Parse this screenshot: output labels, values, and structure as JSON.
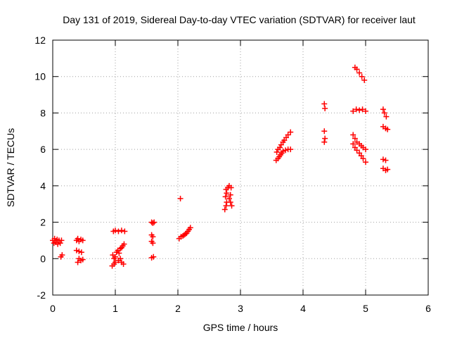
{
  "chart_data": {
    "type": "scatter",
    "title": "Day 131 of 2019, Sidereal Day-to-day VTEC variation (SDTVAR) for receiver laut",
    "xlabel": "GPS time / hours",
    "ylabel": "SDTVAR / TECUs",
    "xlim": [
      0,
      6
    ],
    "ylim": [
      -2,
      12
    ],
    "x_ticks": [
      "0",
      "1",
      "2",
      "3",
      "4",
      "5",
      "6"
    ],
    "y_ticks": [
      "-2",
      "0",
      "2",
      "4",
      "6",
      "8",
      "10",
      "12"
    ],
    "grid": true,
    "marker": "plus",
    "color": "#ff0000",
    "series": [
      {
        "name": "SDTVAR",
        "points": [
          [
            0.0,
            1.0
          ],
          [
            0.02,
            0.85
          ],
          [
            0.03,
            1.1
          ],
          [
            0.05,
            0.9
          ],
          [
            0.07,
            1.05
          ],
          [
            0.08,
            0.8
          ],
          [
            0.1,
            1.0
          ],
          [
            0.12,
            0.85
          ],
          [
            0.14,
            1.0
          ],
          [
            0.13,
            0.1
          ],
          [
            0.15,
            0.2
          ],
          [
            0.38,
            1.0
          ],
          [
            0.4,
            1.1
          ],
          [
            0.42,
            0.95
          ],
          [
            0.45,
            1.05
          ],
          [
            0.48,
            1.0
          ],
          [
            0.38,
            0.45
          ],
          [
            0.42,
            0.4
          ],
          [
            0.46,
            0.35
          ],
          [
            0.4,
            -0.2
          ],
          [
            0.42,
            0.0
          ],
          [
            0.45,
            -0.1
          ],
          [
            0.48,
            -0.05
          ],
          [
            0.97,
            1.5
          ],
          [
            1.0,
            1.55
          ],
          [
            1.05,
            1.5
          ],
          [
            1.1,
            1.55
          ],
          [
            1.15,
            1.5
          ],
          [
            0.96,
            0.2
          ],
          [
            0.98,
            0.0
          ],
          [
            1.0,
            0.1
          ],
          [
            1.02,
            0.35
          ],
          [
            1.04,
            0.45
          ],
          [
            1.06,
            0.3
          ],
          [
            1.08,
            0.55
          ],
          [
            1.1,
            0.6
          ],
          [
            1.12,
            0.7
          ],
          [
            1.14,
            0.8
          ],
          [
            0.95,
            -0.4
          ],
          [
            0.98,
            -0.3
          ],
          [
            1.0,
            -0.2
          ],
          [
            1.05,
            -0.1
          ],
          [
            1.08,
            0.0
          ],
          [
            1.1,
            -0.2
          ],
          [
            1.13,
            -0.3
          ],
          [
            1.58,
            2.0
          ],
          [
            1.6,
            1.95
          ],
          [
            1.62,
            2.0
          ],
          [
            1.58,
            1.3
          ],
          [
            1.6,
            1.2
          ],
          [
            1.58,
            0.95
          ],
          [
            1.6,
            0.85
          ],
          [
            1.58,
            0.05
          ],
          [
            1.61,
            0.1
          ],
          [
            2.04,
            3.3
          ],
          [
            2.02,
            1.1
          ],
          [
            2.05,
            1.2
          ],
          [
            2.08,
            1.25
          ],
          [
            2.1,
            1.3
          ],
          [
            2.12,
            1.35
          ],
          [
            2.14,
            1.4
          ],
          [
            2.16,
            1.5
          ],
          [
            2.18,
            1.6
          ],
          [
            2.2,
            1.7
          ],
          [
            2.75,
            2.7
          ],
          [
            2.77,
            2.9
          ],
          [
            2.78,
            3.1
          ],
          [
            2.76,
            3.4
          ],
          [
            2.78,
            3.6
          ],
          [
            2.77,
            3.8
          ],
          [
            2.8,
            3.9
          ],
          [
            2.82,
            4.0
          ],
          [
            2.85,
            3.9
          ],
          [
            2.82,
            3.3
          ],
          [
            2.84,
            3.1
          ],
          [
            2.86,
            2.9
          ],
          [
            2.84,
            3.5
          ],
          [
            3.57,
            5.4
          ],
          [
            3.6,
            5.5
          ],
          [
            3.62,
            5.6
          ],
          [
            3.64,
            5.7
          ],
          [
            3.66,
            5.8
          ],
          [
            3.68,
            5.9
          ],
          [
            3.72,
            5.95
          ],
          [
            3.76,
            6.0
          ],
          [
            3.8,
            6.0
          ],
          [
            3.58,
            5.85
          ],
          [
            3.6,
            6.0
          ],
          [
            3.63,
            6.1
          ],
          [
            3.65,
            6.25
          ],
          [
            3.68,
            6.4
          ],
          [
            3.7,
            6.5
          ],
          [
            3.73,
            6.65
          ],
          [
            3.76,
            6.8
          ],
          [
            3.8,
            6.95
          ],
          [
            4.34,
            8.5
          ],
          [
            4.35,
            8.25
          ],
          [
            4.34,
            7.0
          ],
          [
            4.35,
            6.6
          ],
          [
            4.34,
            6.4
          ],
          [
            4.83,
            10.5
          ],
          [
            4.86,
            10.4
          ],
          [
            4.9,
            10.2
          ],
          [
            4.94,
            10.0
          ],
          [
            4.98,
            9.8
          ],
          [
            4.8,
            8.1
          ],
          [
            4.85,
            8.2
          ],
          [
            4.9,
            8.15
          ],
          [
            4.95,
            8.2
          ],
          [
            5.0,
            8.1
          ],
          [
            4.8,
            6.8
          ],
          [
            4.83,
            6.6
          ],
          [
            4.86,
            6.4
          ],
          [
            4.9,
            6.3
          ],
          [
            4.93,
            6.2
          ],
          [
            4.96,
            6.1
          ],
          [
            5.0,
            6.0
          ],
          [
            4.8,
            6.3
          ],
          [
            4.83,
            6.1
          ],
          [
            4.86,
            5.95
          ],
          [
            4.9,
            5.8
          ],
          [
            4.93,
            5.65
          ],
          [
            4.96,
            5.5
          ],
          [
            5.0,
            5.3
          ],
          [
            5.28,
            8.2
          ],
          [
            5.3,
            8.0
          ],
          [
            5.33,
            7.8
          ],
          [
            5.28,
            7.25
          ],
          [
            5.32,
            7.15
          ],
          [
            5.35,
            7.1
          ],
          [
            5.28,
            5.45
          ],
          [
            5.32,
            5.4
          ],
          [
            5.28,
            4.95
          ],
          [
            5.32,
            4.85
          ],
          [
            5.35,
            4.9
          ]
        ]
      }
    ]
  }
}
